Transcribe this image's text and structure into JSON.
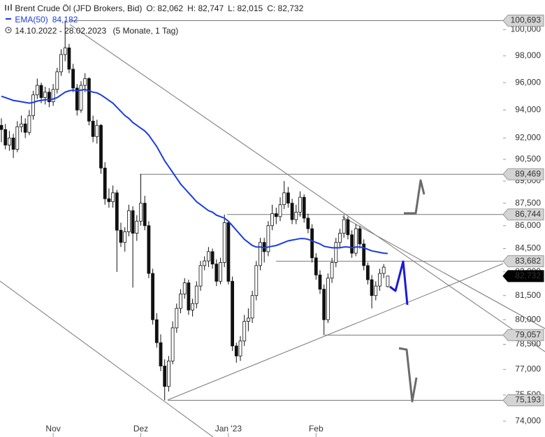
{
  "chart_data": {
    "type": "candlestick",
    "title": "Brent Crude Öl (JFD Brokers, Bid)",
    "ohlc_labels": [
      "O: 82,062",
      "H: 82,747",
      "L: 82,015",
      "C: 82,732"
    ],
    "date_range": "14.10.2022 - 28.02.2023",
    "period": "(5 Monate, 1 Tag)",
    "log_scale": true,
    "up_color": "#ffffff",
    "down_color": "#111111",
    "categories": [
      null,
      null,
      null,
      null,
      null,
      null,
      null,
      null,
      null,
      null,
      null,
      null,
      null,
      "Nov",
      null,
      null,
      null,
      null,
      null,
      null,
      null,
      null,
      null,
      null,
      null,
      null,
      null,
      null,
      null,
      null,
      null,
      null,
      null,
      null,
      null,
      "Dez",
      null,
      null,
      null,
      null,
      null,
      null,
      null,
      null,
      null,
      null,
      null,
      null,
      null,
      null,
      null,
      null,
      null,
      null,
      null,
      null,
      null,
      "Jan '23",
      null,
      null,
      null,
      null,
      null,
      null,
      null,
      null,
      null,
      null,
      null,
      null,
      null,
      null,
      null,
      null,
      null,
      null,
      null,
      null,
      null,
      "Feb",
      null,
      null,
      null,
      null,
      null,
      null,
      null,
      null,
      null,
      null,
      null,
      null,
      null,
      null,
      null,
      null,
      null,
      null
    ],
    "ohlc": [
      [
        92900,
        93400,
        91700,
        92600
      ],
      [
        92600,
        93000,
        91200,
        91500
      ],
      [
        91500,
        92500,
        91100,
        92000
      ],
      [
        92000,
        92300,
        90600,
        91200
      ],
      [
        91200,
        93200,
        91000,
        92800
      ],
      [
        92800,
        93600,
        92400,
        93000
      ],
      [
        93000,
        93400,
        92000,
        92400
      ],
      [
        92400,
        94000,
        92200,
        93600
      ],
      [
        93600,
        95400,
        93300,
        95100
      ],
      [
        95100,
        96300,
        94800,
        95800
      ],
      [
        95800,
        96000,
        94500,
        94900
      ],
      [
        94900,
        95700,
        94400,
        95300
      ],
      [
        95300,
        95600,
        94200,
        94600
      ],
      [
        94600,
        95900,
        94300,
        95500
      ],
      [
        95500,
        97100,
        95200,
        96800
      ],
      [
        96800,
        98500,
        96500,
        98100
      ],
      [
        98100,
        100693,
        97600,
        98600
      ],
      [
        98600,
        98900,
        96700,
        97000
      ],
      [
        97000,
        97400,
        95300,
        95600
      ],
      [
        95600,
        95900,
        93600,
        94000
      ],
      [
        94000,
        96100,
        93800,
        95800
      ],
      [
        95800,
        96700,
        95300,
        96300
      ],
      [
        96300,
        96400,
        92900,
        93200
      ],
      [
        93200,
        93600,
        91700,
        92100
      ],
      [
        92100,
        93300,
        91600,
        92900
      ],
      [
        92900,
        93000,
        89500,
        89900
      ],
      [
        89900,
        90300,
        87400,
        87800
      ],
      [
        87800,
        88500,
        87200,
        87600
      ],
      [
        87600,
        88700,
        87200,
        88200
      ],
      [
        88200,
        88400,
        83000,
        85700
      ],
      [
        85700,
        86200,
        84600,
        84900
      ],
      [
        84900,
        85900,
        84300,
        85600
      ],
      [
        85600,
        87400,
        85300,
        87000
      ],
      [
        87000,
        87300,
        82000,
        85500
      ],
      [
        85500,
        86700,
        85000,
        86300
      ],
      [
        86300,
        89469,
        86000,
        87500
      ],
      [
        87500,
        88000,
        85700,
        86000
      ],
      [
        86000,
        86300,
        82600,
        82900
      ],
      [
        82900,
        83200,
        79700,
        80000
      ],
      [
        80000,
        80400,
        78300,
        78600
      ],
      [
        78600,
        79100,
        76900,
        77200
      ],
      [
        77200,
        77600,
        75193,
        76000
      ],
      [
        76000,
        77800,
        75700,
        77500
      ],
      [
        77500,
        79900,
        77300,
        79500
      ],
      [
        79500,
        81000,
        79200,
        80700
      ],
      [
        80700,
        81900,
        80400,
        81600
      ],
      [
        81600,
        82600,
        81300,
        82300
      ],
      [
        82300,
        82500,
        80300,
        80600
      ],
      [
        80600,
        81300,
        80200,
        81000
      ],
      [
        81000,
        82400,
        80700,
        82100
      ],
      [
        82100,
        83700,
        81800,
        83400
      ],
      [
        83400,
        84000,
        83100,
        83700
      ],
      [
        83700,
        84600,
        83300,
        84300
      ],
      [
        84300,
        84500,
        83200,
        83500
      ],
      [
        83500,
        83800,
        82100,
        82400
      ],
      [
        82400,
        83900,
        82200,
        83600
      ],
      [
        83600,
        86744,
        83300,
        86200
      ],
      [
        86200,
        86300,
        82200,
        82400
      ],
      [
        82400,
        82700,
        78100,
        78400
      ],
      [
        78400,
        78600,
        77400,
        77800
      ],
      [
        77800,
        79000,
        77500,
        78700
      ],
      [
        78700,
        80300,
        78400,
        79900
      ],
      [
        79900,
        80700,
        79300,
        80100
      ],
      [
        80100,
        81800,
        79800,
        81500
      ],
      [
        81500,
        83700,
        81200,
        83400
      ],
      [
        83400,
        85200,
        83100,
        84900
      ],
      [
        84900,
        85200,
        83600,
        84300
      ],
      [
        84300,
        86300,
        84000,
        86000
      ],
      [
        86000,
        87400,
        85700,
        86800
      ],
      [
        86800,
        87200,
        86100,
        86600
      ],
      [
        86600,
        87900,
        86300,
        87400
      ],
      [
        87400,
        89000,
        87100,
        88200
      ],
      [
        88200,
        88600,
        87200,
        87500
      ],
      [
        87500,
        87800,
        86100,
        86400
      ],
      [
        86400,
        87400,
        86100,
        86900
      ],
      [
        86900,
        88300,
        86600,
        87900
      ],
      [
        87900,
        88100,
        86200,
        86500
      ],
      [
        86500,
        86800,
        85500,
        85800
      ],
      [
        85800,
        86100,
        83600,
        83900
      ],
      [
        83900,
        84200,
        82500,
        82800
      ],
      [
        82800,
        83100,
        81600,
        81900
      ],
      [
        81900,
        82200,
        79057,
        80000
      ],
      [
        80000,
        82900,
        79800,
        82600
      ],
      [
        82600,
        83900,
        82300,
        83600
      ],
      [
        83600,
        85200,
        83300,
        84900
      ],
      [
        84900,
        85800,
        84600,
        85500
      ],
      [
        85500,
        86700,
        85200,
        86400
      ],
      [
        86400,
        86600,
        85100,
        85400
      ],
      [
        85400,
        85700,
        83900,
        84200
      ],
      [
        84200,
        86100,
        84000,
        85800
      ],
      [
        85800,
        86000,
        84500,
        84800
      ],
      [
        84800,
        85100,
        83100,
        83400
      ],
      [
        83400,
        83600,
        82200,
        82500
      ],
      [
        82500,
        82800,
        80700,
        81500
      ],
      [
        81500,
        82400,
        81200,
        82100
      ],
      [
        82100,
        83200,
        81800,
        82900
      ],
      [
        82900,
        83500,
        82600,
        83300
      ],
      [
        82062,
        82747,
        82015,
        82732
      ]
    ],
    "ema": {
      "name": "EMA(50)",
      "color": "#1a3ce0",
      "last_label": "84,182",
      "values": [
        95000,
        94900,
        94800,
        94700,
        94650,
        94600,
        94550,
        94500,
        94550,
        94650,
        94700,
        94750,
        94750,
        94800,
        94900,
        95100,
        95300,
        95400,
        95450,
        95400,
        95450,
        95500,
        95400,
        95300,
        95250,
        95100,
        94900,
        94700,
        94500,
        94200,
        93900,
        93600,
        93400,
        93100,
        92900,
        92700,
        92500,
        92200,
        91800,
        91400,
        90900,
        90400,
        90000,
        89600,
        89200,
        88800,
        88500,
        88200,
        87900,
        87600,
        87400,
        87200,
        87000,
        86900,
        86700,
        86600,
        86500,
        86300,
        86000,
        85700,
        85400,
        85100,
        84900,
        84700,
        84600,
        84600,
        84550,
        84600,
        84650,
        84700,
        84800,
        84900,
        85000,
        85050,
        85100,
        85150,
        85150,
        85100,
        85000,
        84900,
        84800,
        84650,
        84600,
        84550,
        84550,
        84550,
        84600,
        84600,
        84550,
        84600,
        84600,
        84550,
        84450,
        84350,
        84300,
        84250,
        84200,
        84182
      ]
    },
    "levels": [
      {
        "value": 100693,
        "label": "100,693"
      },
      {
        "value": 89469,
        "label": "89,469"
      },
      {
        "value": 86744,
        "label": "86,744"
      },
      {
        "value": 83682,
        "label": "83,682"
      },
      {
        "value": 79057,
        "label": "79,057"
      },
      {
        "value": 75193,
        "label": "75,193"
      }
    ],
    "current": {
      "value": 82732,
      "label": "82,732"
    },
    "ylim": [
      73100,
      102300
    ],
    "yticks": [
      {
        "value": 74000,
        "label": "74,000"
      },
      {
        "value": 75500,
        "label": "75,500"
      },
      {
        "value": 77000,
        "label": "77,000"
      },
      {
        "value": 78500,
        "label": "78,500"
      },
      {
        "value": 80000,
        "label": "80,000"
      },
      {
        "value": 81500,
        "label": "81,500"
      },
      {
        "value": 83000,
        "label": "83,000"
      },
      {
        "value": 84500,
        "label": "84,500"
      },
      {
        "value": 86000,
        "label": "86,000"
      },
      {
        "value": 87500,
        "label": "87,500"
      },
      {
        "value": 89000,
        "label": "89,000"
      },
      {
        "value": 90500,
        "label": "90,500"
      },
      {
        "value": 92000,
        "label": "92,000"
      },
      {
        "value": 94000,
        "label": "94,000"
      },
      {
        "value": 96000,
        "label": "96,000"
      },
      {
        "value": 98000,
        "label": "98,000"
      },
      {
        "value": 100000,
        "label": "100,000"
      }
    ]
  }
}
